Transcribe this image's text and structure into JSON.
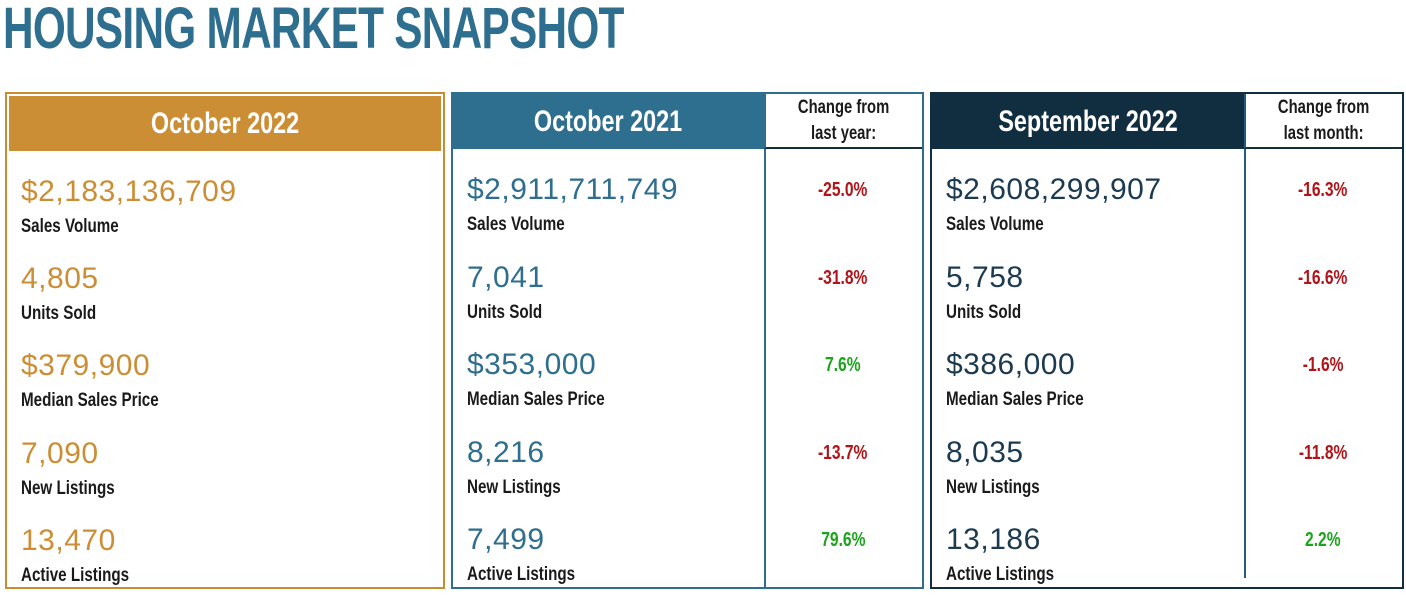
{
  "title": "HOUSING MARKET SNAPSHOT",
  "colors": {
    "title_teal": "#2E6E8E",
    "gold": "#CC8E35",
    "teal": "#2E6E8E",
    "navy": "#112E41",
    "navy_value": "#1C3A50",
    "divider_steel": "#235C80",
    "negative_red": "#B11318",
    "positive_green": "#1CA41C",
    "label_black": "#1A1A1A"
  },
  "panels": [
    {
      "header": "October 2022",
      "stats": [
        {
          "value": "$2,183,136,709",
          "label": "Sales Volume"
        },
        {
          "value": "4,805",
          "label": "Units Sold"
        },
        {
          "value": "$379,900",
          "label": "Median Sales Price"
        },
        {
          "value": "7,090",
          "label": "New Listings"
        },
        {
          "value": "13,470",
          "label": "Active Listings"
        }
      ]
    },
    {
      "header": "October 2021",
      "change_header": {
        "line1": "Change from",
        "line2": "last year:"
      },
      "stats": [
        {
          "value": "$2,911,711,749",
          "label": "Sales Volume",
          "change": "-25.0%",
          "change_color": "#B11318"
        },
        {
          "value": "7,041",
          "label": "Units Sold",
          "change": "-31.8%",
          "change_color": "#B11318"
        },
        {
          "value": "$353,000",
          "label": "Median Sales Price",
          "change": "7.6%",
          "change_color": "#1CA41C"
        },
        {
          "value": "8,216",
          "label": "New Listings",
          "change": "-13.7%",
          "change_color": "#B11318"
        },
        {
          "value": "7,499",
          "label": "Active Listings",
          "change": "79.6%",
          "change_color": "#1CA41C"
        }
      ]
    },
    {
      "header": "September 2022",
      "change_header": {
        "line1": "Change from",
        "line2": "last month:"
      },
      "stats": [
        {
          "value": "$2,608,299,907",
          "label": "Sales Volume",
          "change": "-16.3%",
          "change_color": "#B11318"
        },
        {
          "value": "5,758",
          "label": "Units Sold",
          "change": "-16.6%",
          "change_color": "#B11318"
        },
        {
          "value": "$386,000",
          "label": "Median Sales Price",
          "change": "-1.6%",
          "change_color": "#B11318"
        },
        {
          "value": "8,035",
          "label": "New Listings",
          "change": "-11.8%",
          "change_color": "#B11318"
        },
        {
          "value": "13,186",
          "label": "Active Listings",
          "change": "2.2%",
          "change_color": "#1CA41C"
        }
      ]
    }
  ],
  "chart_data": {
    "type": "table",
    "title": "HOUSING MARKET SNAPSHOT",
    "metrics": [
      "Sales Volume",
      "Units Sold",
      "Median Sales Price",
      "New Listings",
      "Active Listings"
    ],
    "columns": [
      {
        "period": "October 2022",
        "values": [
          2183136709,
          4805,
          379900,
          7090,
          13470
        ]
      },
      {
        "period": "October 2021",
        "values": [
          2911711749,
          7041,
          353000,
          8216,
          7499
        ],
        "change_label": "Change from last year:",
        "changes_pct": [
          -25.0,
          -31.8,
          7.6,
          -13.7,
          79.6
        ]
      },
      {
        "period": "September 2022",
        "values": [
          2608299907,
          5758,
          386000,
          8035,
          13186
        ],
        "change_label": "Change from last month:",
        "changes_pct": [
          -16.3,
          -16.6,
          -1.6,
          -11.8,
          2.2
        ]
      }
    ]
  }
}
